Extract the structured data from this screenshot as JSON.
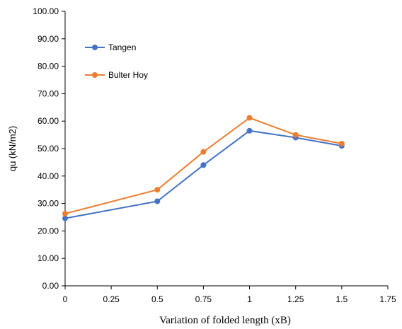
{
  "chart_data": {
    "type": "line",
    "title": "",
    "xlabel": "Variation of folded length (xB)",
    "ylabel": "qu (kN/m2)",
    "xlim": [
      0,
      1.75
    ],
    "ylim": [
      0,
      100
    ],
    "x_ticks": [
      "0",
      "0.25",
      "0.5",
      "0.75",
      "1",
      "1.25",
      "1.5",
      "1.75"
    ],
    "y_ticks": [
      "0.00",
      "10.00",
      "20.00",
      "30.00",
      "40.00",
      "50.00",
      "60.00",
      "70.00",
      "80.00",
      "90.00",
      "100.00"
    ],
    "grid": false,
    "legend_position": "top-left",
    "series": [
      {
        "name": "Tangen",
        "color": "#4472C4",
        "x": [
          0,
          0.5,
          0.75,
          1,
          1.25,
          1.5
        ],
        "y": [
          24.6,
          30.8,
          44.0,
          56.5,
          54.0,
          51.0
        ]
      },
      {
        "name": "Bulter Hoy",
        "color": "#ED7D31",
        "x": [
          0,
          0.5,
          0.75,
          1,
          1.25,
          1.5
        ],
        "y": [
          26.3,
          35.0,
          48.8,
          61.2,
          55.0,
          51.8
        ]
      }
    ]
  }
}
